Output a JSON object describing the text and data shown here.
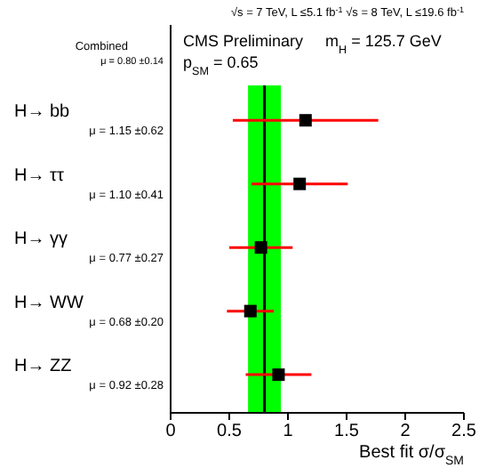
{
  "chart_data": {
    "type": "scatter",
    "orientation": "horizontal",
    "title": "CMS Preliminary",
    "subtitle": "√s = 7 TeV, L ≤5.1 fb$^{-1}$  √s = 8 TeV, L ≤19.6 fb$^{-1}$",
    "xlabel": "Best fit σ/σ$_{SM}$",
    "categories": [
      "H→ bb",
      "H→ ττ",
      "H→ γγ",
      "H→ WW",
      "H→ ZZ"
    ],
    "series": [
      {
        "color": "#000000",
        "values": [
          1.15,
          1.1,
          0.77,
          0.68,
          0.92
        ],
        "errors": [
          0.62,
          0.41,
          0.27,
          0.2,
          0.28
        ]
      }
    ],
    "xlim": [
      0,
      2.5
    ],
    "xticks": [
      0,
      0.5,
      1,
      1.5,
      2,
      2.5
    ],
    "marker": "square",
    "bands": [
      {
        "axis": "x",
        "from": 0.66,
        "to": 0.94,
        "color": "#00ff00"
      }
    ],
    "ref_lines": [
      {
        "axis": "x",
        "value": 0.8,
        "color": "#000000"
      }
    ],
    "annotations": [
      "μ = 1.15 ±0.62",
      "μ = 1.10 ±0.41",
      "μ = 0.77 ±0.27",
      "μ = 0.68 ±0.20",
      "μ = 0.92 ±0.28",
      "m$_{H}$ = 125.7 GeV",
      "p$_{SM}$ = 0.65",
      "Combined",
      "μ = 0.80 ±0.14"
    ]
  }
}
